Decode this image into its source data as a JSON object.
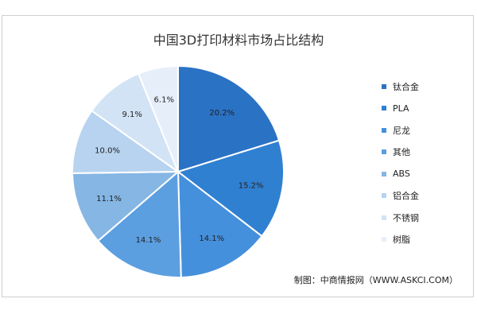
{
  "title": "中国3D打印材料市场占比结构",
  "source": "制图：中商情报网（WWW.ASKCI.COM）",
  "chart_data": {
    "type": "pie",
    "title": "中国3D打印材料市场占比结构",
    "start_angle_deg": 0,
    "direction": "clockwise",
    "legend_position": "right",
    "categories": [
      "钛合金",
      "PLA",
      "尼龙",
      "其他",
      "ABS",
      "铝合金",
      "不锈钢",
      "树脂"
    ],
    "values": [
      20.2,
      15.2,
      14.1,
      14.1,
      11.1,
      10.0,
      9.1,
      6.1
    ],
    "value_labels": [
      "20.2%",
      "15.2%",
      "14.1%",
      "14.1%",
      "11.1%",
      "10.0%",
      "9.1%",
      "6.1%"
    ],
    "colors": [
      "#2a72c4",
      "#3080d2",
      "#4590dc",
      "#5c9fe0",
      "#85b6e4",
      "#b7d3ef",
      "#d2e3f5",
      "#e6eff9"
    ]
  }
}
